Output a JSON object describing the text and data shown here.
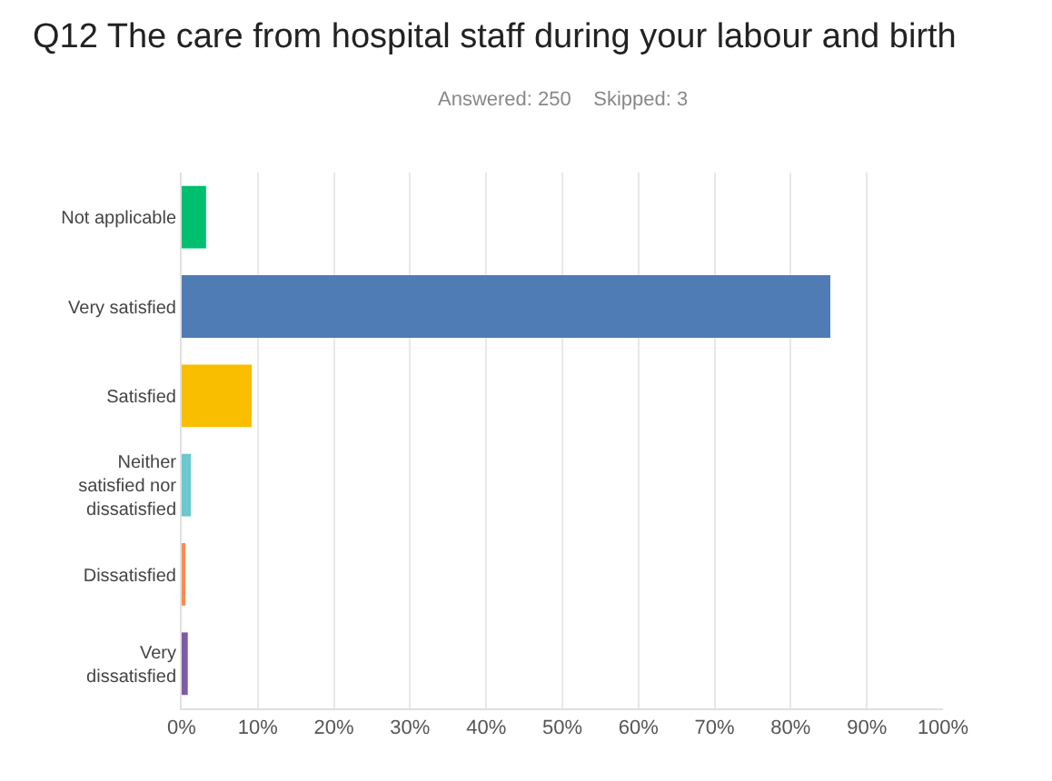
{
  "chart_data": {
    "type": "bar",
    "orientation": "horizontal",
    "title": "Q12 The care from hospital staff during your labour and birth",
    "subtitle": "Answered: 250    Skipped: 3",
    "categories": [
      "Not applicable",
      "Very satisfied",
      "Satisfied",
      "Neither satisfied nor dissatisfied",
      "Dissatisfied",
      "Very dissatisfied"
    ],
    "values": [
      3.2,
      85.2,
      9.2,
      1.2,
      0.4,
      0.8
    ],
    "colors": [
      "#00bf6f",
      "#507cb6",
      "#f9be00",
      "#6bc8cd",
      "#ff8b4f",
      "#7d5ba6"
    ],
    "xlim": [
      0,
      100
    ],
    "xticks": [
      {
        "value": 0,
        "label": "0%"
      },
      {
        "value": 10,
        "label": "10%"
      },
      {
        "value": 20,
        "label": "20%"
      },
      {
        "value": 30,
        "label": "30%"
      },
      {
        "value": 40,
        "label": "40%"
      },
      {
        "value": 50,
        "label": "50%"
      },
      {
        "value": 60,
        "label": "60%"
      },
      {
        "value": 70,
        "label": "70%"
      },
      {
        "value": 80,
        "label": "80%"
      },
      {
        "value": 90,
        "label": "90%"
      },
      {
        "value": 100,
        "label": "100%"
      }
    ],
    "grid": "x",
    "legend": false
  }
}
